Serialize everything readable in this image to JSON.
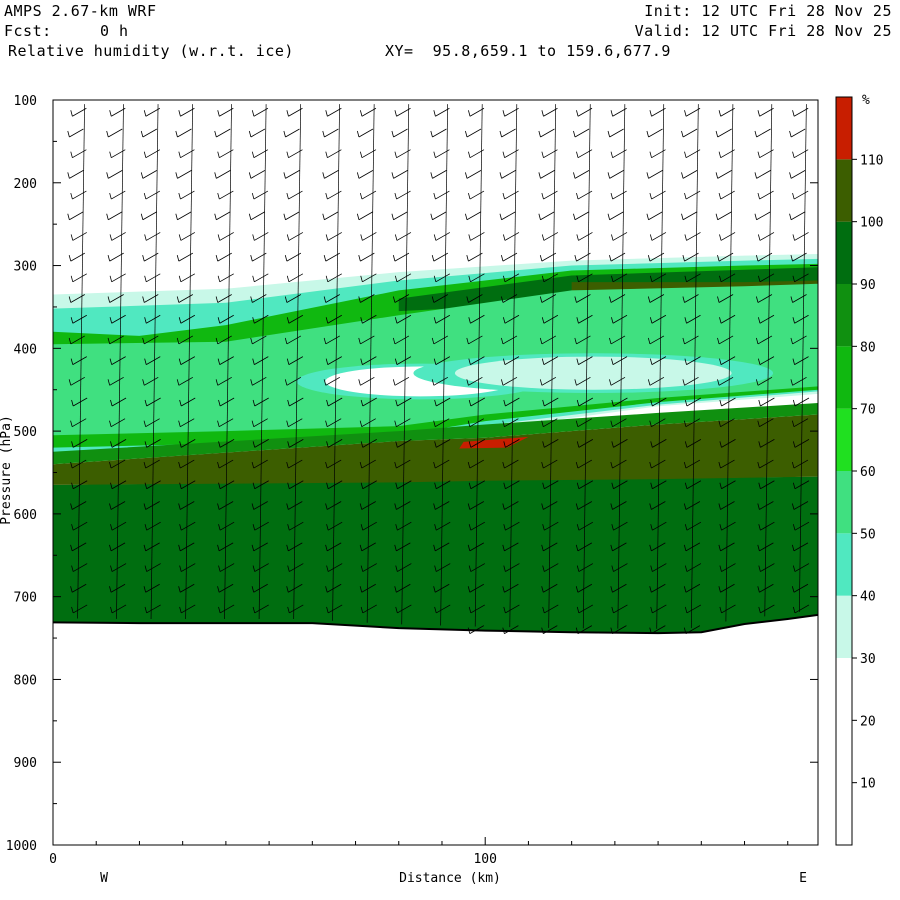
{
  "header": {
    "model": "AMPS 2.67-km WRF",
    "fcst_label": "Fcst:",
    "fcst_value": "0 h",
    "field": "Relative humidity (w.r.t. ice)",
    "xy": "XY=  95.8,659.1 to 159.6,677.9",
    "init": "Init: 12 UTC Fri 28 Nov 25",
    "valid": "Valid: 12 UTC Fri 28 Nov 25"
  },
  "chart_data": {
    "type": "heatmap",
    "xlabel": "Distance (km)",
    "ylabel": "Pressure (hPa)",
    "xlim": [
      0,
      177
    ],
    "ylim": [
      1000,
      100
    ],
    "xticks": [
      0,
      100
    ],
    "yticks": [
      100,
      200,
      300,
      400,
      500,
      600,
      700,
      800,
      900,
      1000
    ],
    "left_label": "W",
    "right_label": "E",
    "colorbar": {
      "unit": "%",
      "levels": [
        10,
        20,
        30,
        40,
        50,
        60,
        70,
        80,
        90,
        100,
        110
      ],
      "colors": [
        "#ffffff",
        "#ffffff",
        "#ffffff",
        "#c8f8e8",
        "#50e8c0",
        "#40e080",
        "#20e020",
        "#10b810",
        "#109010",
        "#006e10",
        "#3c5e00",
        "#c81e00"
      ]
    },
    "terrain_pressure": [
      [
        0,
        731
      ],
      [
        20,
        732
      ],
      [
        40,
        732
      ],
      [
        60,
        732
      ],
      [
        80,
        738
      ],
      [
        100,
        741
      ],
      [
        120,
        743
      ],
      [
        140,
        744
      ],
      [
        150,
        743
      ],
      [
        160,
        733
      ],
      [
        170,
        727
      ],
      [
        177,
        722
      ]
    ],
    "rh_bands": [
      {
        "level": 30,
        "top": [
          [
            0,
            335
          ],
          [
            40,
            328
          ],
          [
            80,
            308
          ],
          [
            120,
            294
          ],
          [
            160,
            288
          ],
          [
            177,
            286
          ]
        ],
        "bottom": [
          [
            0,
            535
          ],
          [
            40,
            530
          ],
          [
            80,
            520
          ],
          [
            100,
            498
          ],
          [
            140,
            470
          ],
          [
            177,
            455
          ]
        ]
      },
      {
        "level": 40,
        "top": [
          [
            0,
            352
          ],
          [
            40,
            345
          ],
          [
            80,
            318
          ],
          [
            120,
            300
          ],
          [
            160,
            294
          ],
          [
            177,
            292
          ]
        ],
        "bottom": [
          [
            0,
            528
          ],
          [
            40,
            523
          ],
          [
            80,
            512
          ],
          [
            100,
            493
          ],
          [
            140,
            468
          ],
          [
            177,
            452
          ]
        ]
      },
      {
        "level": 70,
        "top": [
          [
            0,
            380
          ],
          [
            20,
            385
          ],
          [
            40,
            372
          ],
          [
            80,
            330
          ],
          [
            120,
            306
          ],
          [
            160,
            300
          ],
          [
            177,
            298
          ]
        ],
        "bottom": [
          [
            0,
            520
          ],
          [
            40,
            515
          ],
          [
            80,
            505
          ],
          [
            100,
            488
          ],
          [
            140,
            465
          ],
          [
            177,
            450
          ]
        ]
      },
      {
        "level": 90,
        "top": [
          [
            80,
            340
          ],
          [
            120,
            312
          ],
          [
            160,
            305
          ],
          [
            177,
            302
          ]
        ],
        "bottom": [
          [
            80,
            355
          ],
          [
            120,
            345
          ],
          [
            160,
            350
          ],
          [
            177,
            352
          ]
        ]
      },
      {
        "level": 100,
        "top": [
          [
            120,
            320
          ],
          [
            160,
            320
          ],
          [
            177,
            318
          ]
        ],
        "bottom": [
          [
            120,
            342
          ],
          [
            160,
            350
          ],
          [
            177,
            350
          ]
        ]
      }
    ],
    "low_rh_pockets": [
      {
        "center": [
          85,
          440
        ],
        "rx_km": 22,
        "ry_hpa": 18,
        "level": 20
      },
      {
        "center": [
          125,
          430
        ],
        "rx_km": 32,
        "ry_hpa": 20,
        "level": 30
      }
    ],
    "high_rh_layer": {
      "level": 100,
      "top": [
        [
          0,
          540
        ],
        [
          80,
          512
        ],
        [
          100,
          508
        ],
        [
          140,
          492
        ],
        [
          177,
          480
        ]
      ],
      "bottom": [
        [
          0,
          565
        ],
        [
          80,
          562
        ],
        [
          100,
          560
        ],
        [
          140,
          558
        ],
        [
          177,
          555
        ]
      ]
    },
    "saturated_blob": {
      "level": 110,
      "points": [
        [
          95,
          513
        ],
        [
          110,
          507
        ],
        [
          105,
          520
        ],
        [
          94,
          521
        ]
      ]
    },
    "barb_columns_km": [
      8,
      17,
      25,
      33,
      42,
      50,
      58,
      67,
      75,
      83,
      92,
      100,
      108,
      117,
      125,
      133,
      142,
      150,
      158,
      167,
      175
    ]
  }
}
